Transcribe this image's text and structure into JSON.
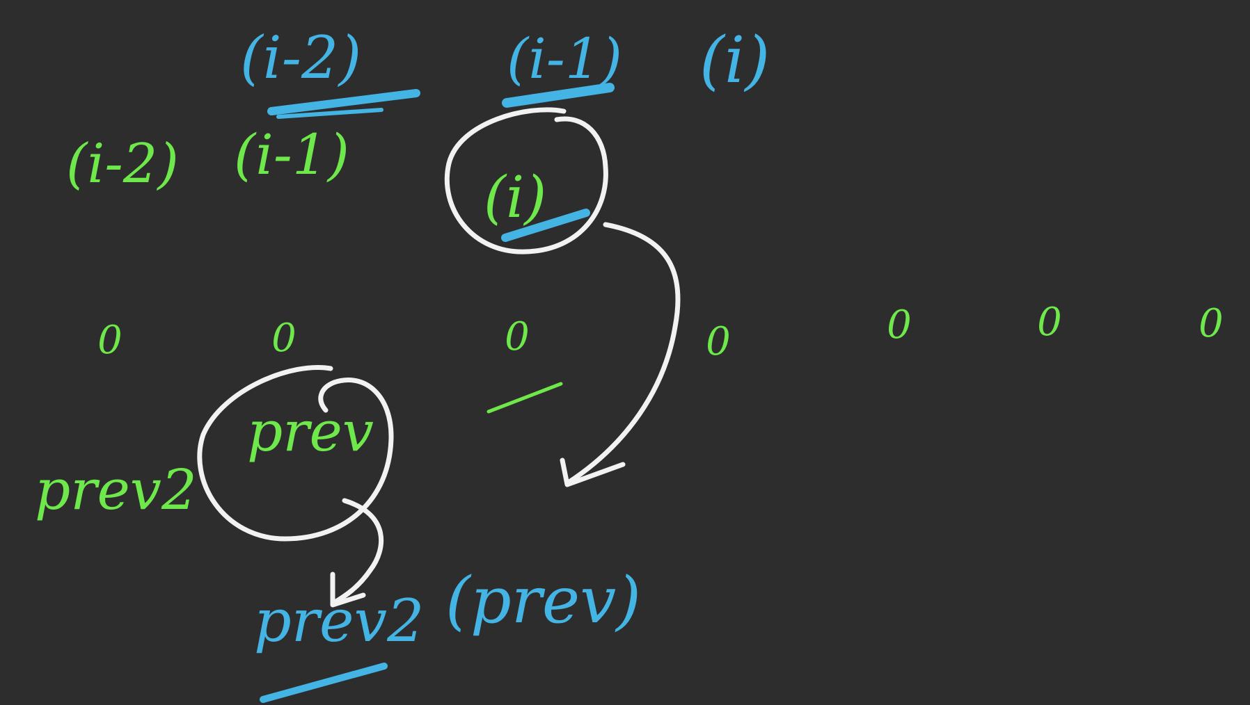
{
  "colors": {
    "background": "#2d2d2d",
    "green_ink": "#6ee84a",
    "blue_ink": "#44b4e4",
    "white_ink": "#f2f2f2"
  },
  "blue_indices": {
    "i_minus_2": "(i-2)",
    "i_minus_1": "(i-1)",
    "i": "(i)"
  },
  "green_indices": {
    "i_minus_2": "(i-2)",
    "i_minus_1": "(i-1)",
    "i": "(i)"
  },
  "array_cells": [
    "0",
    "0",
    "0",
    "0",
    "0",
    "0",
    "0"
  ],
  "labels": {
    "prev2": "prev2",
    "prev": "prev",
    "new_prev2": "prev2",
    "new_prev": "(prev)"
  }
}
